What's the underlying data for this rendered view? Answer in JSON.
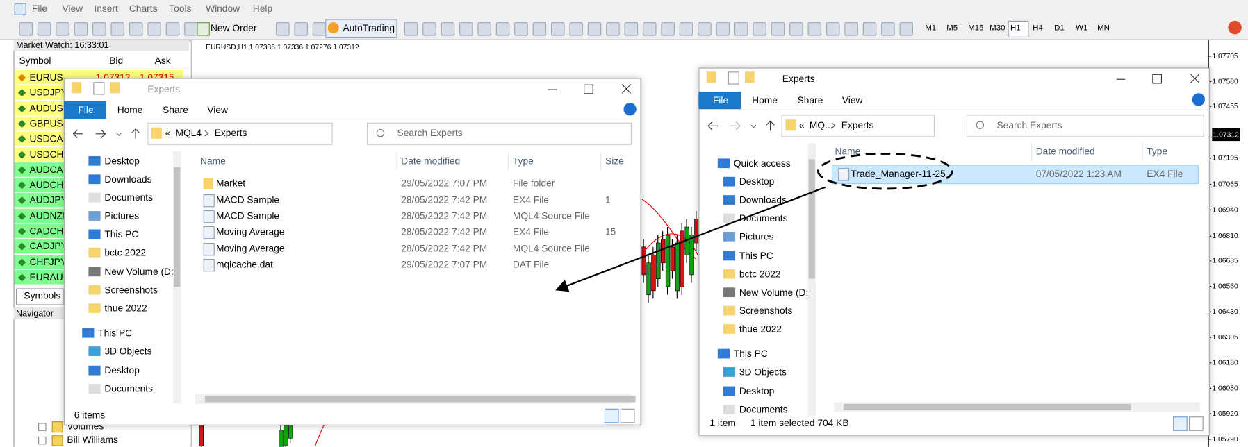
{
  "menu": [
    "File",
    "View",
    "Insert",
    "Charts",
    "Tools",
    "Window",
    "Help"
  ],
  "toolbar": {
    "buttons": [
      "New Order",
      "AutoTrading"
    ],
    "timeframes": [
      "M1",
      "M5",
      "M15",
      "M30",
      "H1",
      "H4",
      "D1",
      "W1",
      "MN"
    ]
  },
  "market_watch": {
    "title": "Market Watch: 16:33:01",
    "columns": [
      "Symbol",
      "Bid",
      "Ask"
    ],
    "symbols": [
      "EURUSD",
      "USDJPY",
      "AUDUSD",
      "GBPUSD",
      "USDCAD",
      "USDCHF",
      "AUDCAD",
      "AUDCHF",
      "AUDJPY",
      "AUDNZD",
      "CADCHF",
      "CADJPY",
      "CHFJPY",
      "EURAUD"
    ],
    "first_quote": [
      "1.07312",
      "1.07315"
    ],
    "tab": "Symbols"
  },
  "navigator": {
    "title": "Navigator",
    "items": [
      "Volumes",
      "Bill Williams"
    ]
  },
  "chart": {
    "header": "EURUSD,H1  1.07336 1.07336 1.07276 1.07312",
    "price_labels": [
      "1.07705",
      "1.07580",
      "1.07455",
      "1.07312",
      "1.07195",
      "1.07065",
      "1.06940",
      "1.06810",
      "1.06685",
      "1.06560",
      "1.06430",
      "1.06305",
      "1.06180",
      "1.06050",
      "1.05920",
      "1.05790"
    ]
  },
  "left_explorer": {
    "title": "Experts",
    "tabs": [
      "File",
      "Home",
      "Share",
      "View"
    ],
    "path": [
      "«",
      "MQL4",
      "Experts"
    ],
    "search": "Search Experts",
    "nav": [
      "Desktop",
      "Downloads",
      "Documents",
      "Pictures",
      "This PC",
      "bctc 2022",
      "New Volume (D:",
      "Screenshots",
      "thue 2022",
      "This PC",
      "3D Objects",
      "Desktop",
      "Documents"
    ],
    "columns": [
      "Name",
      "Date modified",
      "Type",
      "Size"
    ],
    "files": [
      [
        "Market",
        "29/05/2022 7:07 PM",
        "File folder"
      ],
      [
        "MACD Sample",
        "28/05/2022 7:42 PM",
        "EX4 File",
        "1"
      ],
      [
        "MACD Sample",
        "28/05/2022 7:42 PM",
        "MQL4 Source File"
      ],
      [
        "Moving Average",
        "28/05/2022 7:42 PM",
        "EX4 File",
        "15"
      ],
      [
        "Moving Average",
        "28/05/2022 7:42 PM",
        "MQL4 Source File"
      ],
      [
        "mqlcache.dat",
        "29/05/2022 7:07 PM",
        "DAT File"
      ]
    ],
    "status": [
      "6 items"
    ]
  },
  "right_explorer": {
    "title": "Experts",
    "tabs": [
      "File",
      "Home",
      "Share",
      "View"
    ],
    "path": [
      "«",
      "MQ...",
      "Experts"
    ],
    "search": "Search Experts",
    "nav": [
      "Quick access",
      "Desktop",
      "Downloads",
      "Documents",
      "Pictures",
      "This PC",
      "bctc 2022",
      "New Volume (D:",
      "Screenshots",
      "thue 2022",
      "This PC",
      "3D Objects",
      "Desktop",
      "Documents"
    ],
    "columns": [
      "Name",
      "Date modified",
      "Type"
    ],
    "files": [
      [
        "Trade_Manager-11-25",
        "07/05/2022 1:23 AM",
        "EX4 File"
      ]
    ],
    "status": [
      "1 item",
      "1 item selected  704 KB"
    ]
  }
}
